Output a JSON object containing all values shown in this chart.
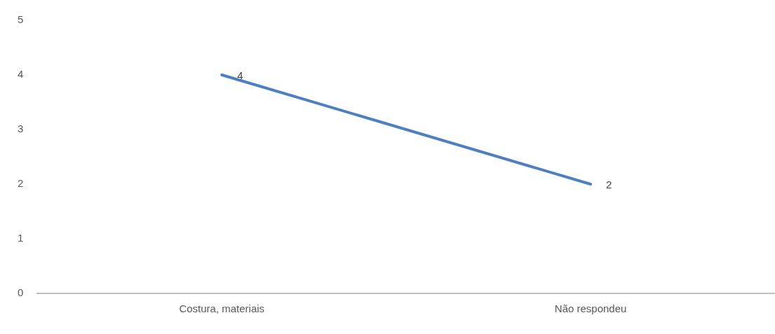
{
  "chart_data": {
    "type": "line",
    "categories": [
      "Costura, materiais",
      "Não respondeu"
    ],
    "series": [
      {
        "color": "#4e7fc0",
        "values": [
          4,
          2
        ]
      }
    ],
    "ylim": [
      0,
      5
    ],
    "yticks": [
      0,
      1,
      2,
      3,
      4,
      5
    ],
    "grid": false,
    "legend": false,
    "marker": "none",
    "line_style": "solid",
    "data_labels": true
  }
}
